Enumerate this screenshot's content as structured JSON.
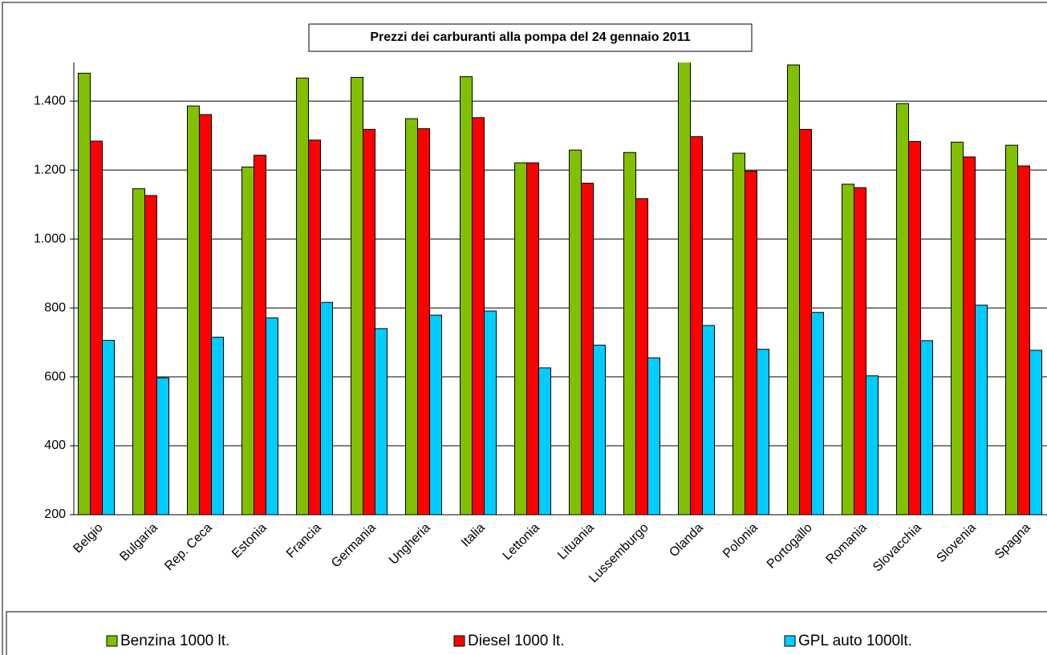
{
  "chart_data": {
    "type": "bar",
    "title": "Prezzi dei carburanti alla pompa del 24 gennaio 2011",
    "categories": [
      "Belgio",
      "Bulgaria",
      "Rep. Ceca",
      "Estonia",
      "Francia",
      "Germania",
      "Ungheria",
      "Italia",
      "Lettonia",
      "Lituania",
      "Lussemburgo",
      "Olanda",
      "Polonia",
      "Portogallo",
      "Romania",
      "Slovacchia",
      "Slovenia",
      "Spagna"
    ],
    "series": [
      {
        "name": "Benzina 1000 lt.",
        "color": "#80c000",
        "values": [
          1481,
          1146,
          1386,
          1209,
          1467,
          1469,
          1349,
          1471,
          1221,
          1258,
          1251,
          1520,
          1249,
          1505,
          1159,
          1393,
          1281,
          1272
        ]
      },
      {
        "name": "Diesel 1000 lt.",
        "color": "#ff0000",
        "values": [
          1284,
          1126,
          1361,
          1243,
          1287,
          1318,
          1320,
          1352,
          1221,
          1162,
          1117,
          1297,
          1197,
          1318,
          1149,
          1283,
          1238,
          1212
        ]
      },
      {
        "name": "GPL auto 1000lt.",
        "color": "#00ccff",
        "values": [
          706,
          597,
          715,
          771,
          816,
          740,
          779,
          791,
          626,
          692,
          655,
          749,
          680,
          787,
          603,
          705,
          808,
          677
        ]
      }
    ],
    "ylim": [
      200,
      1512
    ],
    "yticks": [
      200,
      400,
      600,
      800,
      {
        "value": 1000,
        "label": "1.000"
      },
      {
        "value": 1200,
        "label": "1.200"
      },
      {
        "value": 1400,
        "label": "1.400"
      }
    ],
    "grid": true,
    "legend": "bottom"
  }
}
